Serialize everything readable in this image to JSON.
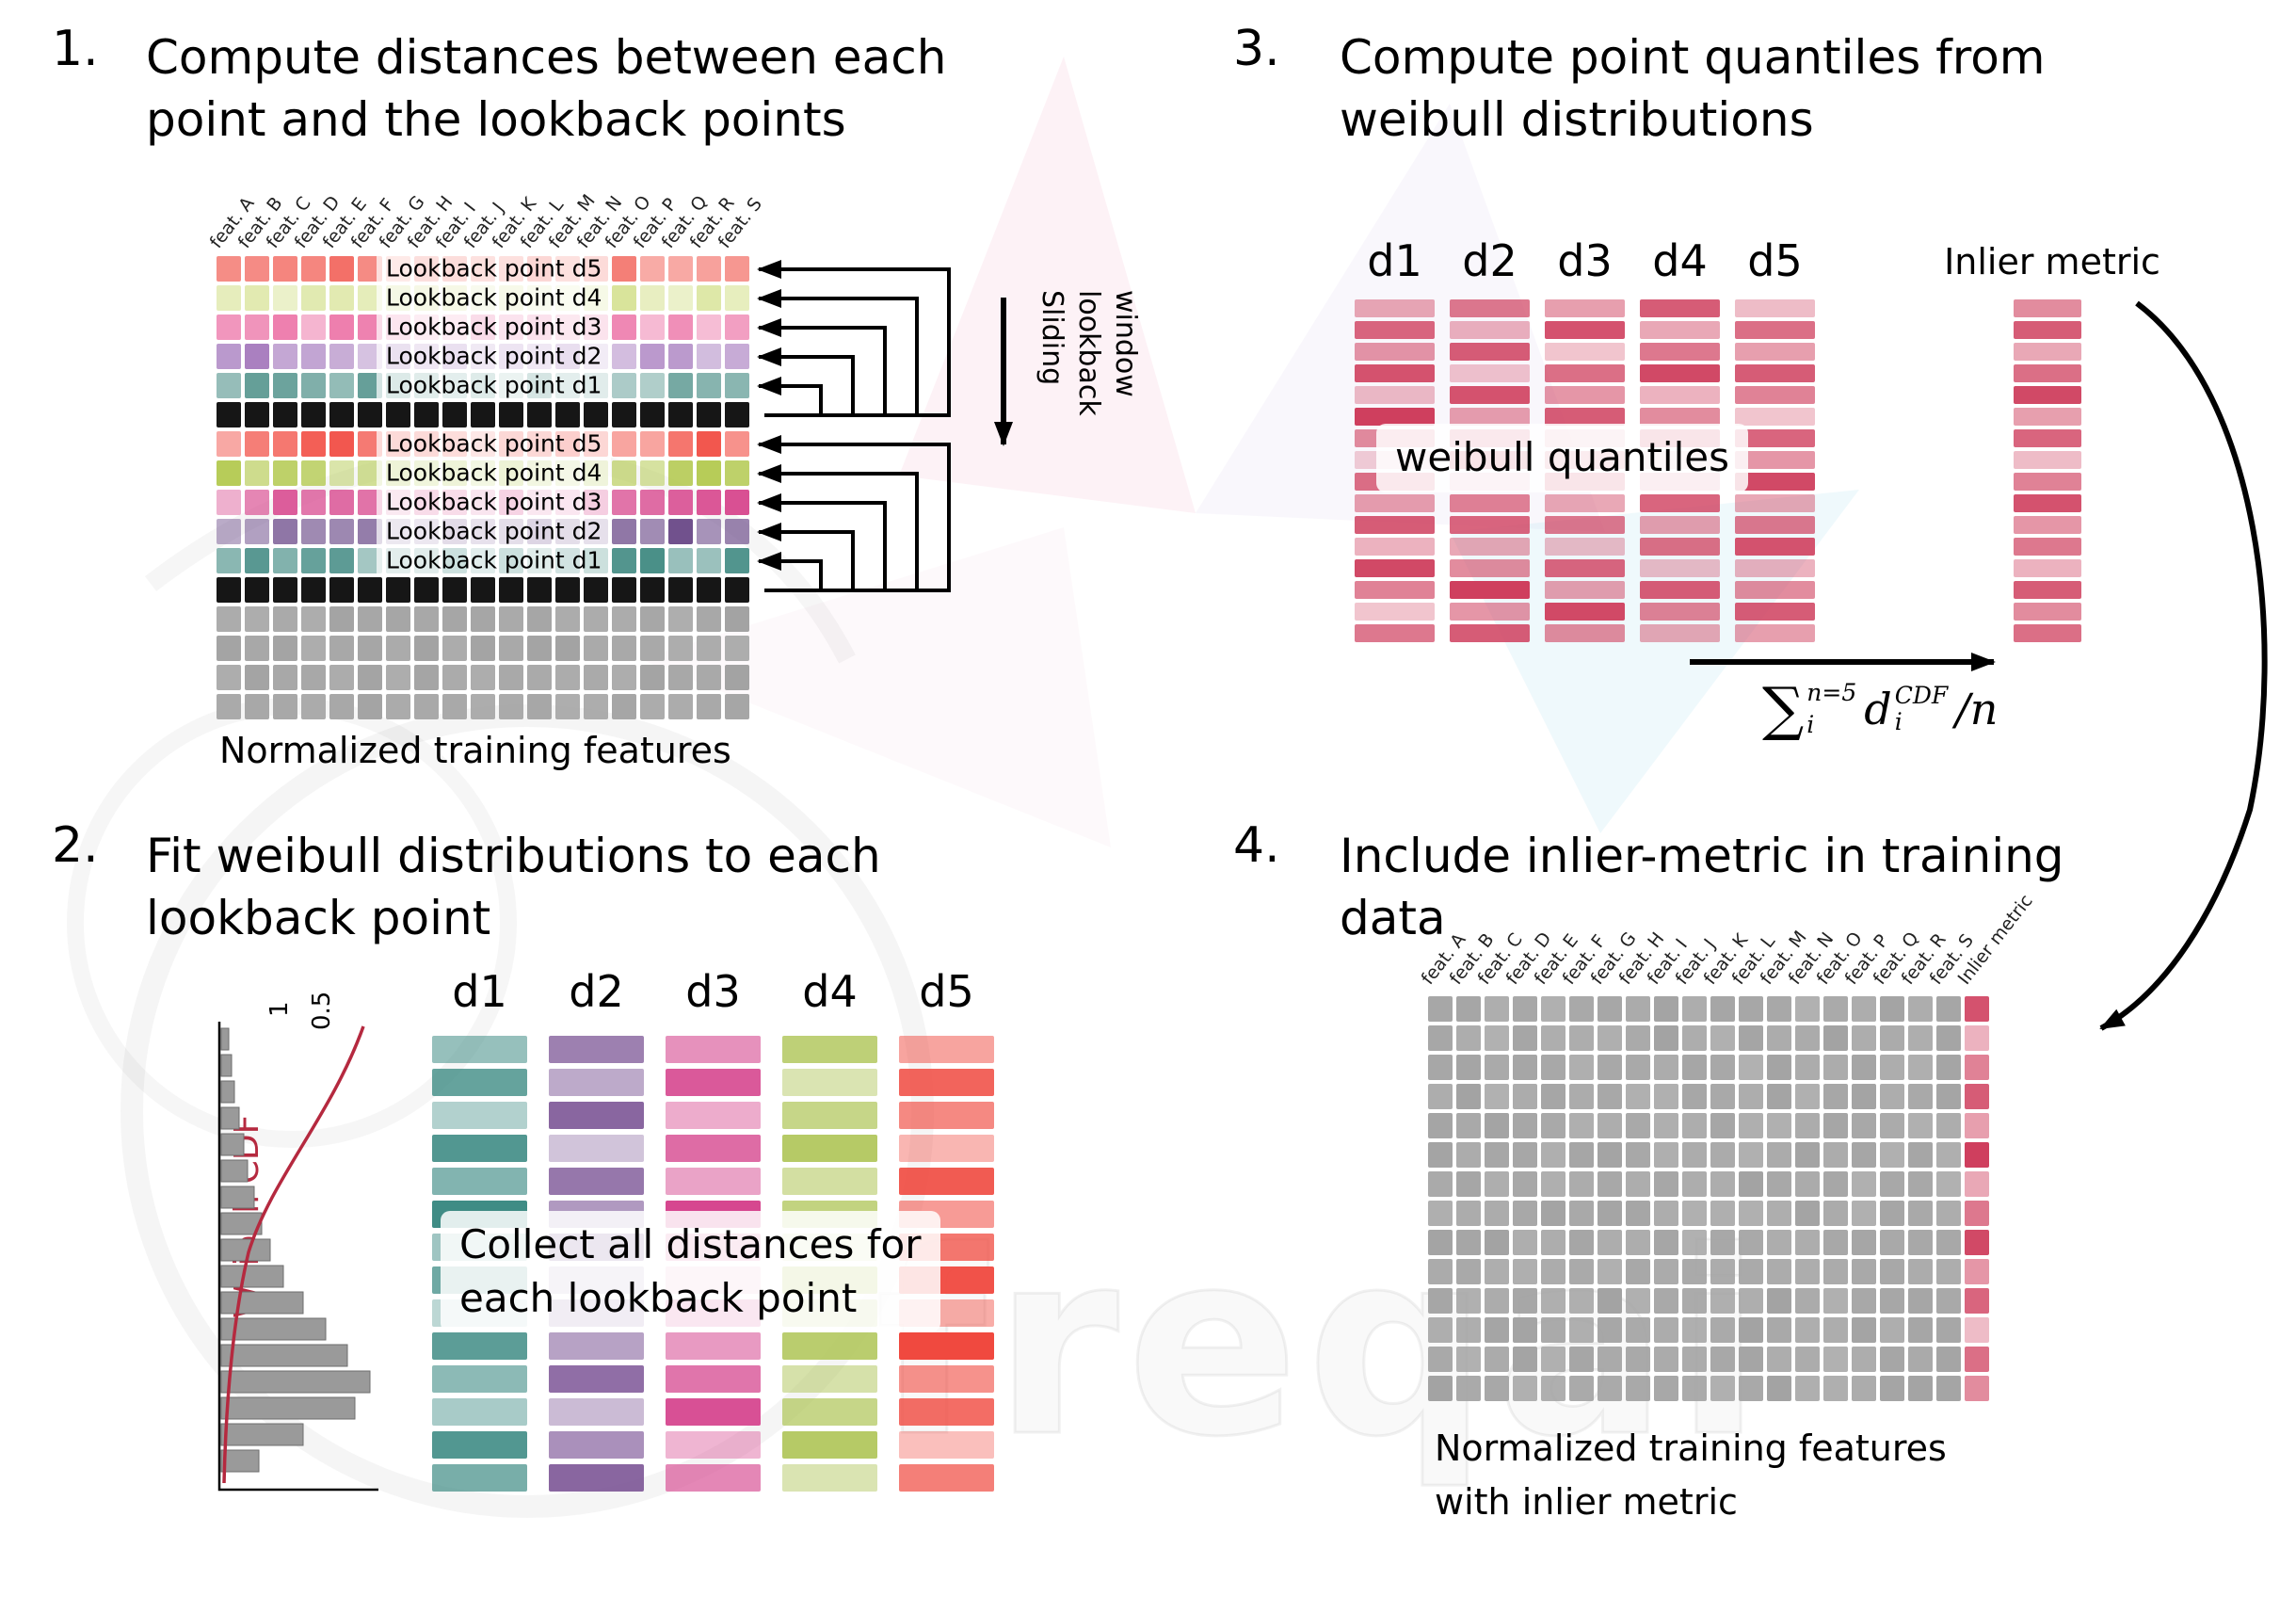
{
  "watermark": {
    "text": "freqai"
  },
  "feature_labels": [
    "feat. A",
    "feat. B",
    "feat. C",
    "feat. D",
    "feat. E",
    "feat. F",
    "feat. G",
    "feat. H",
    "feat. I",
    "feat. J",
    "feat. K",
    "feat. L",
    "feat. M",
    "feat. N",
    "feat. O",
    "feat. P",
    "feat. Q",
    "feat. R",
    "feat. S"
  ],
  "step1": {
    "number": "1.",
    "title_line1": "Compute distances between each",
    "title_line2": "point and the lookback points",
    "rows": [
      {
        "label": "Lookback point d5",
        "color": "#f2635a",
        "type": "lookback"
      },
      {
        "label": "Lookback point d4",
        "color": "#d9e49a",
        "type": "lookback"
      },
      {
        "label": "Lookback point d3",
        "color": "#ec74a7",
        "type": "lookback"
      },
      {
        "label": "Lookback point d2",
        "color": "#a97fc0",
        "type": "lookback"
      },
      {
        "label": "Lookback point d1",
        "color": "#5f9b94",
        "type": "lookback"
      },
      {
        "label": "",
        "color": "#161616",
        "type": "current"
      },
      {
        "label": "Lookback point d5",
        "color": "#f2544b",
        "type": "lookback"
      },
      {
        "label": "Lookback point d4",
        "color": "#b4ca52",
        "type": "lookback"
      },
      {
        "label": "Lookback point d3",
        "color": "#d94f92",
        "type": "lookback"
      },
      {
        "label": "Lookback point d2",
        "color": "#6f4f8c",
        "type": "lookback"
      },
      {
        "label": "Lookback point d1",
        "color": "#36837b",
        "type": "lookback"
      },
      {
        "label": "",
        "color": "#161616",
        "type": "current"
      },
      {
        "label": "",
        "color": "#a3a3a3",
        "type": "plain"
      },
      {
        "label": "",
        "color": "#a3a3a3",
        "type": "plain"
      },
      {
        "label": "",
        "color": "#a3a3a3",
        "type": "plain"
      },
      {
        "label": "",
        "color": "#a3a3a3",
        "type": "plain"
      }
    ],
    "sliding_label": "Sliding\nlookback\nwindow",
    "caption": "Normalized training features"
  },
  "step2": {
    "number": "2.",
    "title_line1": "Fit weibull distributions to each",
    "title_line2": "lookback point",
    "headers": [
      "d1",
      "d2",
      "d3",
      "d4",
      "d5"
    ],
    "columns": [
      {
        "name": "d1",
        "color": "#3f8c85",
        "alphas": [
          0.55,
          0.8,
          0.4,
          0.9,
          0.65,
          1,
          0.5,
          0.75,
          0.35,
          0.85,
          0.6,
          0.45,
          0.9,
          0.7
        ]
      },
      {
        "name": "d2",
        "color": "#7c5596",
        "alphas": [
          0.75,
          0.5,
          0.9,
          0.35,
          0.8,
          0.6,
          0.95,
          0.45,
          0.7,
          0.55,
          0.85,
          0.4,
          0.65,
          0.9
        ]
      },
      {
        "name": "d3",
        "color": "#d6478f",
        "alphas": [
          0.6,
          0.9,
          0.45,
          0.8,
          0.5,
          1,
          0.7,
          0.35,
          0.85,
          0.55,
          0.75,
          0.95,
          0.4,
          0.65
        ]
      },
      {
        "name": "d4",
        "color": "#aec455",
        "alphas": [
          0.8,
          0.45,
          0.7,
          0.9,
          0.55,
          0.75,
          0.4,
          0.95,
          0.6,
          0.85,
          0.5,
          0.7,
          0.9,
          0.45
        ]
      },
      {
        "name": "d5",
        "color": "#f0493f",
        "alphas": [
          0.5,
          0.85,
          0.65,
          0.4,
          0.9,
          0.55,
          0.75,
          0.95,
          0.45,
          1,
          0.6,
          0.8,
          0.35,
          0.7
        ]
      }
    ],
    "overlay_line1": "Collect all distances for",
    "overlay_line2": "each lookback point",
    "cdf": {
      "label": "Weibull CDF",
      "ticks": [
        "1",
        "0.5"
      ],
      "hist": [
        0.05,
        0.07,
        0.09,
        0.12,
        0.15,
        0.18,
        0.22,
        0.27,
        0.33,
        0.42,
        0.55,
        0.7,
        0.85,
        1,
        0.9,
        0.55,
        0.25
      ]
    }
  },
  "step3": {
    "number": "3.",
    "title_line1": "Compute point quantiles from",
    "title_line2": "weibull distributions",
    "headers": [
      "d1",
      "d2",
      "d3",
      "d4",
      "d5"
    ],
    "bar_color": "#cf3f5e",
    "columns": [
      [
        0.45,
        0.8,
        0.55,
        0.9,
        0.35,
        1,
        0.6,
        0.25,
        0.75,
        0.5,
        0.85,
        0.4,
        0.95,
        0.65,
        0.3,
        0.7
      ],
      [
        0.7,
        0.4,
        0.85,
        0.3,
        0.9,
        0.5,
        0.75,
        0.95,
        0.35,
        0.65,
        0.8,
        0.45,
        0.6,
        1,
        0.55,
        0.85
      ],
      [
        0.5,
        0.9,
        0.3,
        0.75,
        0.55,
        0.85,
        0.4,
        0.65,
        0.9,
        0.45,
        0.7,
        0.35,
        0.8,
        0.5,
        0.95,
        0.6
      ],
      [
        0.85,
        0.45,
        0.7,
        0.95,
        0.4,
        0.6,
        0.9,
        0.3,
        0.55,
        0.8,
        0.5,
        0.75,
        0.35,
        0.85,
        0.65,
        0.45
      ],
      [
        0.35,
        0.75,
        0.5,
        0.85,
        0.65,
        0.3,
        0.8,
        0.55,
        0.95,
        0.45,
        0.7,
        0.9,
        0.4,
        0.6,
        0.85,
        0.5
      ]
    ],
    "overlay": "weibull quantiles",
    "inlier_label": "Inlier metric",
    "inlier_alphas": [
      0.6,
      0.85,
      0.45,
      0.75,
      0.95,
      0.5,
      0.8,
      0.35,
      0.65,
      0.9,
      0.55,
      0.7,
      0.4,
      0.85,
      0.6,
      0.75
    ],
    "formula": {
      "sigma": "∑",
      "sigma_sup": "n=5",
      "sigma_sub": "i",
      "d": "d",
      "d_sup": "CDF",
      "d_sub": "i",
      "tail": "/n"
    }
  },
  "step4": {
    "number": "4.",
    "title_line1": "Include inlier-metric in training",
    "title_line2": "data",
    "inlier_col_label": "Inlier metric",
    "grid": {
      "rows": 14,
      "cols": 20,
      "base_color": "#a3a3a3",
      "inlier_color": "#cf3f5e",
      "inlier_alphas": [
        0.9,
        0.4,
        0.65,
        0.85,
        0.5,
        1,
        0.45,
        0.7,
        0.95,
        0.55,
        0.8,
        0.35,
        0.75,
        0.6
      ]
    },
    "caption_line1": "Normalized training features",
    "caption_line2": "with inlier metric"
  }
}
